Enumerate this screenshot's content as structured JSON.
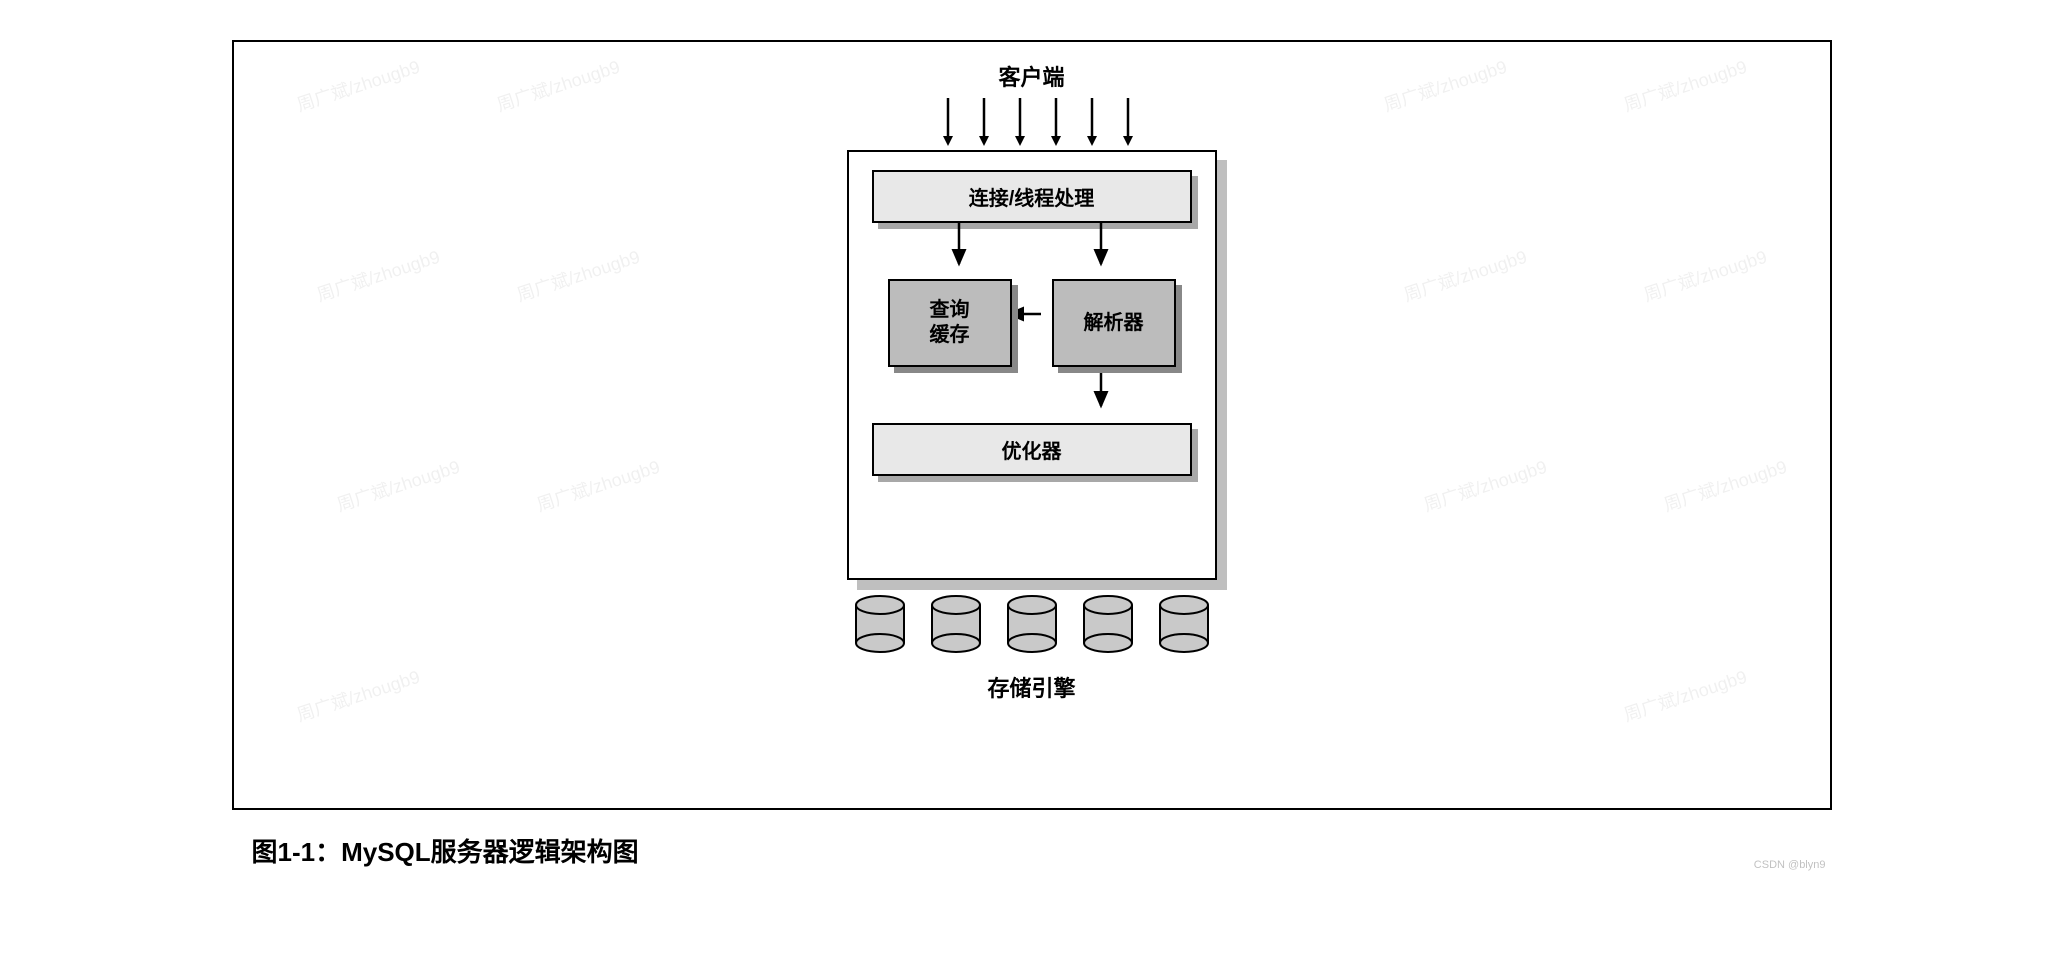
{
  "diagram": {
    "type": "flowchart",
    "title_top": "客户端",
    "title_bottom": "存储引擎",
    "caption": "图1-1：MySQL服务器逻辑架构图",
    "client_arrow_count": 6,
    "boxes": {
      "connection": "连接/线程处理",
      "query_cache": "查询\n缓存",
      "parser": "解析器",
      "optimizer": "优化器"
    },
    "cylinder_count": 5,
    "colors": {
      "page_bg": "#ffffff",
      "frame_border": "#000000",
      "server_fill": "#ffffff",
      "server_shadow": "#bfbfbf",
      "widebar_fill": "#e8e8e8",
      "widebar_shadow": "#a8a8a8",
      "midbox_fill": "#bcbcbc",
      "midbox_shadow": "#888888",
      "cylinder_fill": "#c9c9c9",
      "cylinder_stroke": "#000000",
      "arrow_stroke": "#000000",
      "text": "#000000"
    },
    "fonts": {
      "label_pt": 22,
      "box_pt": 20,
      "caption_pt": 26,
      "weight": "bold"
    },
    "edges": [
      {
        "from": "connection",
        "to": "query_cache"
      },
      {
        "from": "connection",
        "to": "parser"
      },
      {
        "from": "parser",
        "to": "query_cache",
        "dir": "left"
      },
      {
        "from": "parser",
        "to": "optimizer"
      }
    ]
  },
  "watermark": {
    "text": "周广斌/zhougb9",
    "csdn": "CSDN @blyn9"
  }
}
